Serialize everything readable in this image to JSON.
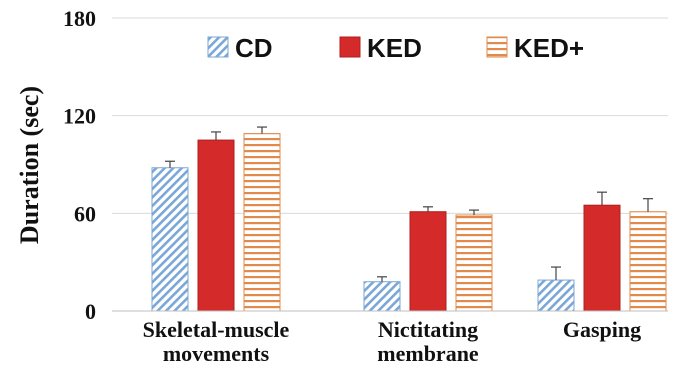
{
  "chart_data": {
    "type": "bar",
    "ylabel": "Duration (sec)",
    "ylim": [
      0,
      180
    ],
    "yticks": [
      "0",
      "60",
      "120",
      "180"
    ],
    "grid": true,
    "legend_position": "top",
    "categories": [
      [
        "Skeletal-muscle",
        "movements"
      ],
      [
        "Nictitating",
        "membrane"
      ],
      [
        "Gasping"
      ]
    ],
    "series": [
      {
        "name": "CD",
        "values": [
          88,
          18,
          19
        ],
        "errors": [
          4,
          3,
          8
        ],
        "pattern": "diagonal-hatch",
        "color": "#7ba7d6"
      },
      {
        "name": "KED",
        "values": [
          105,
          61,
          65
        ],
        "errors": [
          5,
          3,
          8
        ],
        "pattern": "solid",
        "color": "#d42a2a"
      },
      {
        "name": "KED+",
        "values": [
          109,
          59,
          61
        ],
        "errors": [
          4,
          3,
          8
        ],
        "pattern": "horizontal-stripes",
        "color": "#e08a4c"
      }
    ]
  }
}
